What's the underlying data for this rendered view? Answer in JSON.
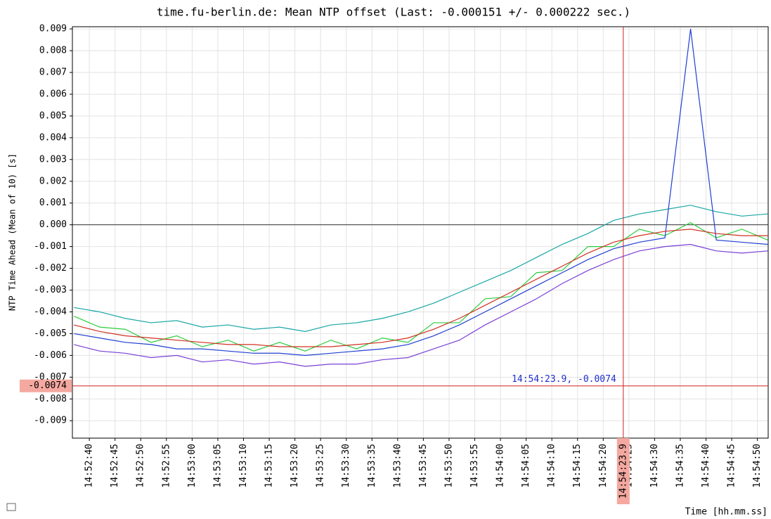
{
  "chart_data": {
    "type": "line",
    "title": "time.fu-berlin.de: Mean NTP offset (Last: -0.000151 +/- 0.000222 sec.)",
    "ylabel": "NTP Time Ahead (Mean of 10) [s]",
    "xlabel": "Time [hh.mm.ss]",
    "x": [
      53557,
      53562,
      53567,
      53572,
      53577,
      53582,
      53587,
      53592,
      53597,
      53602,
      53607,
      53612,
      53617,
      53622,
      53627,
      53632,
      53637,
      53642,
      53647,
      53652,
      53657,
      53662,
      53667,
      53672,
      53677,
      53682,
      53687,
      53692
    ],
    "series": [
      {
        "color": "#1aa6a6",
        "values": [
          -0.0038,
          -0.004,
          -0.0043,
          -0.0045,
          -0.0044,
          -0.0047,
          -0.0046,
          -0.0048,
          -0.0047,
          -0.0049,
          -0.0046,
          -0.0045,
          -0.0043,
          -0.004,
          -0.0036,
          -0.0031,
          -0.0026,
          -0.0021,
          -0.0015,
          -0.0009,
          -0.0004,
          0.0002,
          0.0005,
          0.0007,
          0.0009,
          0.0006,
          0.0004,
          0.0005
        ]
      },
      {
        "color": "#7a3fd6",
        "values": [
          -0.0055,
          -0.0058,
          -0.0059,
          -0.0061,
          -0.006,
          -0.0063,
          -0.0062,
          -0.0064,
          -0.0063,
          -0.0065,
          -0.0064,
          -0.0064,
          -0.0062,
          -0.0061,
          -0.0057,
          -0.0053,
          -0.0046,
          -0.004,
          -0.0034,
          -0.0027,
          -0.0021,
          -0.0016,
          -0.0012,
          -0.001,
          -0.0009,
          -0.0012,
          -0.0013,
          -0.0012
        ]
      },
      {
        "color": "#2ecc40",
        "values": [
          -0.0042,
          -0.0047,
          -0.0048,
          -0.0054,
          -0.0051,
          -0.0056,
          -0.0053,
          -0.0058,
          -0.0054,
          -0.0058,
          -0.0053,
          -0.0057,
          -0.0052,
          -0.0054,
          -0.0045,
          -0.0045,
          -0.0034,
          -0.0033,
          -0.0022,
          -0.0021,
          -0.001,
          -0.001,
          -0.0002,
          -0.0005,
          0.0001,
          -0.0006,
          -0.0002,
          -0.0007
        ]
      },
      {
        "color": "#1f3fd0",
        "values": [
          -0.005,
          -0.0052,
          -0.0054,
          -0.0055,
          -0.0057,
          -0.0057,
          -0.0058,
          -0.0059,
          -0.0059,
          -0.006,
          -0.0059,
          -0.0058,
          -0.0057,
          -0.0055,
          -0.0051,
          -0.0046,
          -0.004,
          -0.0034,
          -0.0028,
          -0.0022,
          -0.0016,
          -0.0011,
          -0.0008,
          -0.0006,
          0.009,
          -0.0007,
          -0.0008,
          -0.0009
        ]
      },
      {
        "color": "#d03020",
        "values": [
          -0.0046,
          -0.0049,
          -0.0051,
          -0.0052,
          -0.0053,
          -0.0054,
          -0.0055,
          -0.0055,
          -0.0056,
          -0.0056,
          -0.0056,
          -0.0055,
          -0.0054,
          -0.0052,
          -0.0048,
          -0.0043,
          -0.0037,
          -0.0031,
          -0.0025,
          -0.0019,
          -0.0013,
          -0.0008,
          -0.0005,
          -0.0003,
          -0.0002,
          -0.0004,
          -0.0005,
          -0.0005
        ]
      }
    ],
    "xlim": [
      53556.7,
      53692.1
    ],
    "ylim": [
      -0.0098,
      0.0091
    ],
    "yticks": [
      0.009,
      0.008,
      0.007,
      0.006,
      0.005,
      0.004,
      0.003,
      0.002,
      0.001,
      {
        "value": 0,
        "label": "0.000"
      },
      -0.001,
      -0.002,
      -0.003,
      -0.004,
      -0.005,
      -0.006,
      -0.007,
      -0.008,
      -0.009
    ],
    "xticks": [
      {
        "value": 53560,
        "label": "14:52:40"
      },
      {
        "value": 53565,
        "label": "14:52:45"
      },
      {
        "value": 53570,
        "label": "14:52:50"
      },
      {
        "value": 53575,
        "label": "14:52:55"
      },
      {
        "value": 53580,
        "label": "14:53:00"
      },
      {
        "value": 53585,
        "label": "14:53:05"
      },
      {
        "value": 53590,
        "label": "14:53:10"
      },
      {
        "value": 53595,
        "label": "14:53:15"
      },
      {
        "value": 53600,
        "label": "14:53:20"
      },
      {
        "value": 53605,
        "label": "14:53:25"
      },
      {
        "value": 53610,
        "label": "14:53:30"
      },
      {
        "value": 53615,
        "label": "14:53:35"
      },
      {
        "value": 53620,
        "label": "14:53:40"
      },
      {
        "value": 53625,
        "label": "14:53:45"
      },
      {
        "value": 53630,
        "label": "14:53:50"
      },
      {
        "value": 53635,
        "label": "14:53:55"
      },
      {
        "value": 53640,
        "label": "14:54:00"
      },
      {
        "value": 53645,
        "label": "14:54:05"
      },
      {
        "value": 53650,
        "label": "14:54:10"
      },
      {
        "value": 53655,
        "label": "14:54:15"
      },
      {
        "value": 53660,
        "label": "14:54:20"
      },
      {
        "value": 53665,
        "label": "14:54:25"
      },
      {
        "value": 53670,
        "label": "14:54:30"
      },
      {
        "value": 53675,
        "label": "14:54:35"
      },
      {
        "value": 53680,
        "label": "14:54:40"
      },
      {
        "value": 53685,
        "label": "14:54:45"
      },
      {
        "value": 53690,
        "label": "14:54:50"
      }
    ],
    "grid": true,
    "crosshair": {
      "x": 53663.9,
      "y": -0.0074,
      "label": "14:54:23.9, -0.0074",
      "x_label": "14:54:23.9"
    }
  }
}
